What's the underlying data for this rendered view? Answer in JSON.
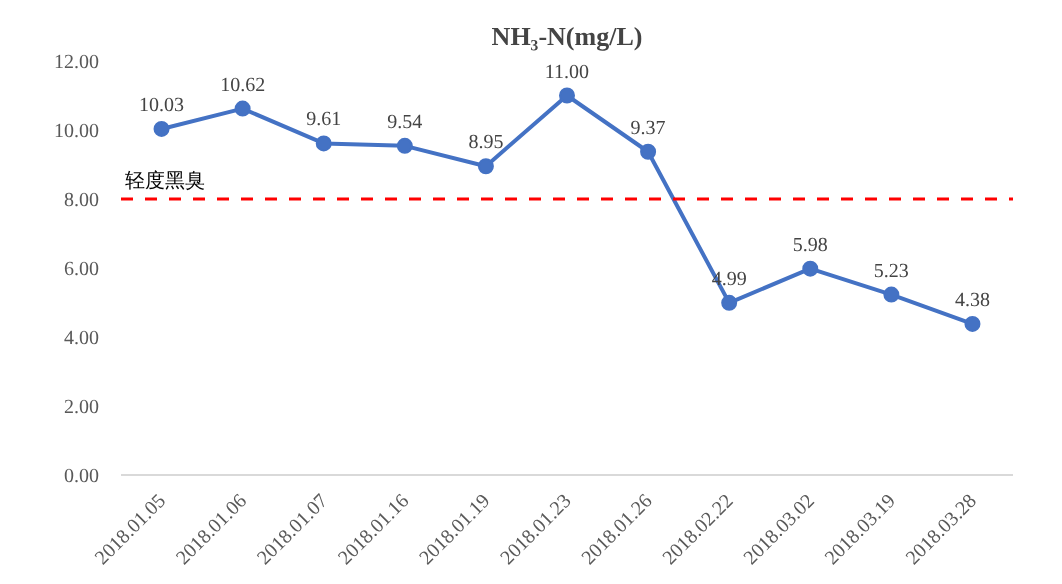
{
  "chart_data": {
    "type": "line",
    "title": "NH₃-N(mg/L)",
    "categories": [
      "2018.01.05",
      "2018.01.06",
      "2018.01.07",
      "2018.01.16",
      "2018.01.19",
      "2018.01.23",
      "2018.01.26",
      "2018.02.22",
      "2018.03.02",
      "2018.03.19",
      "2018.03.28"
    ],
    "series": [
      {
        "color": "#4472c4",
        "values": [
          10.03,
          10.62,
          9.61,
          9.54,
          8.95,
          11.0,
          9.37,
          4.99,
          5.98,
          5.23,
          4.38
        ]
      }
    ],
    "value_labels": [
      "10.03",
      "10.62",
      "9.61",
      "9.54",
      "8.95",
      "11.00",
      "9.37",
      "4.99",
      "5.98",
      "5.23",
      "4.38"
    ],
    "ylim": [
      0,
      12
    ],
    "yticks": [
      {
        "value": 0,
        "label": "0.00"
      },
      {
        "value": 2,
        "label": "2.00"
      },
      {
        "value": 4,
        "label": "4.00"
      },
      {
        "value": 6,
        "label": "6.00"
      },
      {
        "value": 8,
        "label": "8.00"
      },
      {
        "value": 10,
        "label": "10.00"
      },
      {
        "value": 12,
        "label": "12.00"
      }
    ],
    "ref_lines": [
      {
        "axis": "y",
        "value": 8,
        "label": "轻度黑臭",
        "color": "#ff0000",
        "line_style": "dashed"
      }
    ],
    "marker": "circle",
    "line_style": "solid",
    "grid": false
  }
}
